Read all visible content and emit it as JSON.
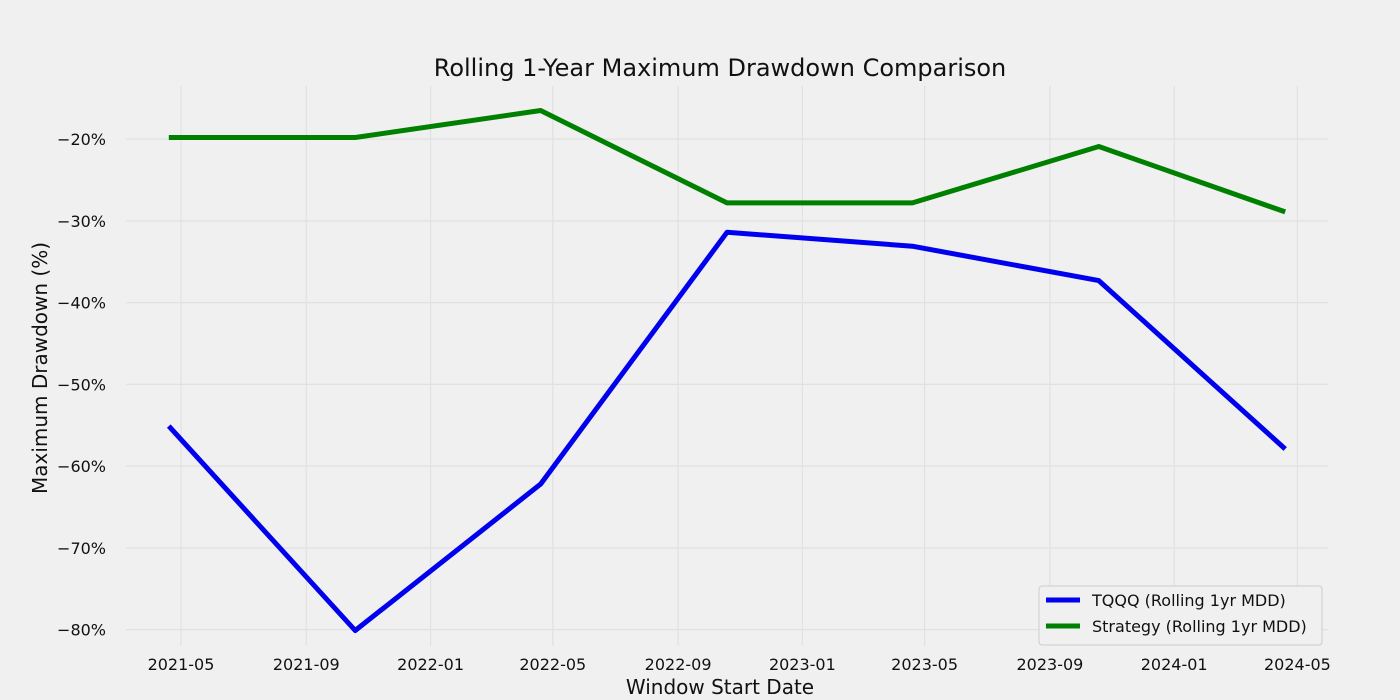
{
  "chart_data": {
    "type": "line",
    "title": "Rolling 1-Year Maximum Drawdown Comparison",
    "xlabel": "Window Start Date",
    "ylabel": "Maximum Drawdown (%)",
    "x_ticks": [
      "2021-05",
      "2021-09",
      "2022-01",
      "2022-05",
      "2022-09",
      "2023-01",
      "2023-05",
      "2023-09",
      "2024-01",
      "2024-05"
    ],
    "y_ticks": [
      -20,
      -30,
      -40,
      -50,
      -60,
      -70,
      -80
    ],
    "y_tick_labels": [
      "−20%",
      "−30%",
      "−40%",
      "−50%",
      "−60%",
      "−70%",
      "−80%"
    ],
    "ylim": [
      -82,
      -13.5
    ],
    "xlim": [
      "2021-03-08",
      "2024-05-31"
    ],
    "x": [
      "2021-04-19",
      "2021-10-19",
      "2022-04-19",
      "2022-10-19",
      "2023-04-19",
      "2023-10-19",
      "2024-04-19"
    ],
    "series": [
      {
        "name": "TQQQ (Rolling 1yr MDD)",
        "color": "#0000ee",
        "values": [
          -55.1,
          -80.1,
          -62.2,
          -31.4,
          -33.1,
          -37.3,
          -57.9
        ]
      },
      {
        "name": "Strategy (Rolling 1yr MDD)",
        "color": "#008000",
        "values": [
          -19.8,
          -19.8,
          -16.5,
          -27.8,
          -27.8,
          -20.9,
          -28.9
        ]
      }
    ],
    "grid": true,
    "legend_position": "lower-right"
  }
}
